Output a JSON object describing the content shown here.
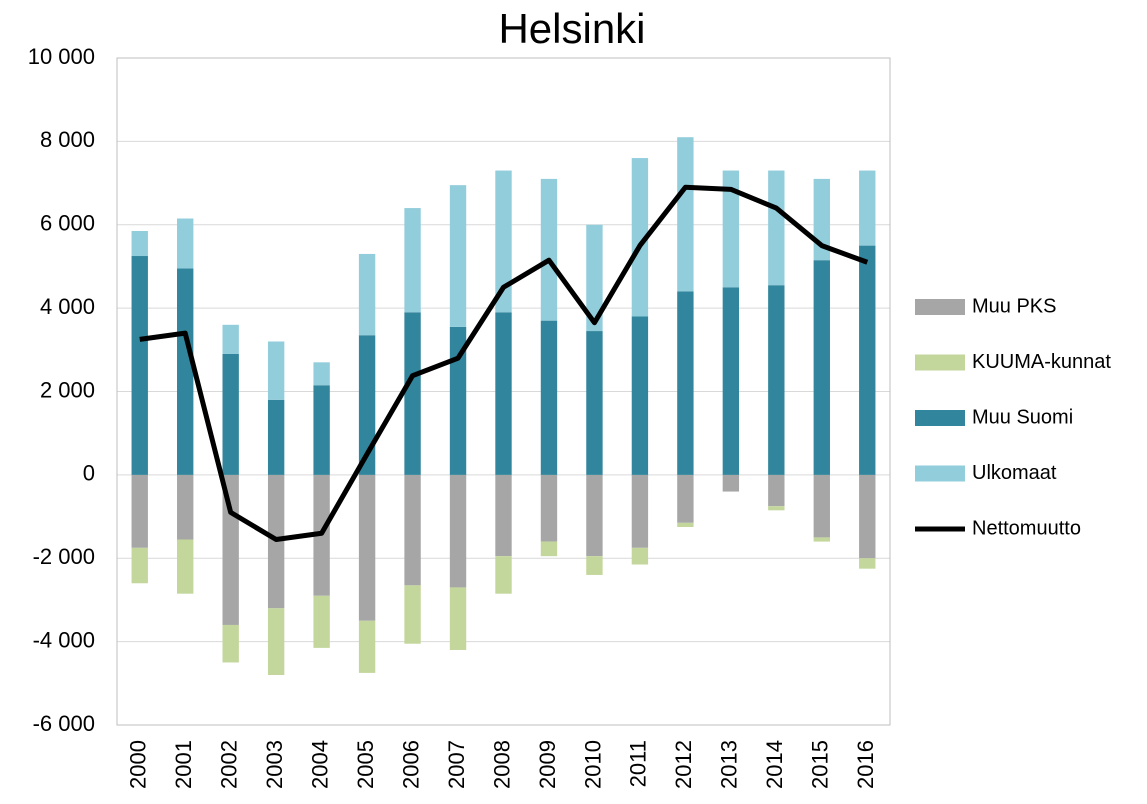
{
  "chart_data": {
    "type": "bar",
    "title": "Helsinki",
    "categories": [
      "2000",
      "2001",
      "2002",
      "2003",
      "2004",
      "2005",
      "2006",
      "2007",
      "2008",
      "2009",
      "2010",
      "2011",
      "2012",
      "2013",
      "2014",
      "2015",
      "2016"
    ],
    "stacked": true,
    "series": [
      {
        "name": "Muu PKS",
        "type": "bar",
        "color": "#a6a6a6",
        "values": [
          -1750,
          -1550,
          -3600,
          -3200,
          -2900,
          -3500,
          -2650,
          -2700,
          -1950,
          -1600,
          -1950,
          -1750,
          -1150,
          -400,
          -750,
          -1500,
          -2000
        ]
      },
      {
        "name": "KUUMA-kunnat",
        "type": "bar",
        "color": "#c3d69b",
        "values": [
          -850,
          -1300,
          -900,
          -1600,
          -1250,
          -1250,
          -1400,
          -1500,
          -900,
          -350,
          -450,
          -400,
          -100,
          0,
          -100,
          -100,
          -250
        ]
      },
      {
        "name": "Muu Suomi",
        "type": "bar",
        "color": "#31859c",
        "values": [
          5250,
          4950,
          2900,
          1800,
          2150,
          3350,
          3900,
          3550,
          3900,
          3700,
          3450,
          3800,
          4400,
          4500,
          4550,
          5150,
          5500
        ]
      },
      {
        "name": "Ulkomaat",
        "type": "bar",
        "color": "#92cddc",
        "values": [
          600,
          1200,
          700,
          1400,
          550,
          1950,
          2500,
          3400,
          3400,
          3400,
          2550,
          3800,
          3700,
          2800,
          2750,
          1950,
          1800
        ]
      },
      {
        "name": "Nettomuutto",
        "type": "line",
        "color": "#000000",
        "values": [
          3250,
          3400,
          -900,
          -1550,
          -1400,
          500,
          2380,
          2800,
          4500,
          5150,
          3650,
          5500,
          6900,
          6850,
          6400,
          5500,
          5100
        ]
      }
    ],
    "ylim": [
      -6000,
      10000
    ],
    "yticks": [
      {
        "value": -6000,
        "label": "-6 000"
      },
      {
        "value": -4000,
        "label": "-4 000"
      },
      {
        "value": -2000,
        "label": "-2 000"
      },
      0,
      {
        "value": 2000,
        "label": "2 000"
      },
      {
        "value": 4000,
        "label": "4 000"
      },
      {
        "value": 6000,
        "label": "6 000"
      },
      {
        "value": 8000,
        "label": "8 000"
      },
      {
        "value": 10000,
        "label": "10 000"
      }
    ],
    "grid": true,
    "legend": "right"
  }
}
